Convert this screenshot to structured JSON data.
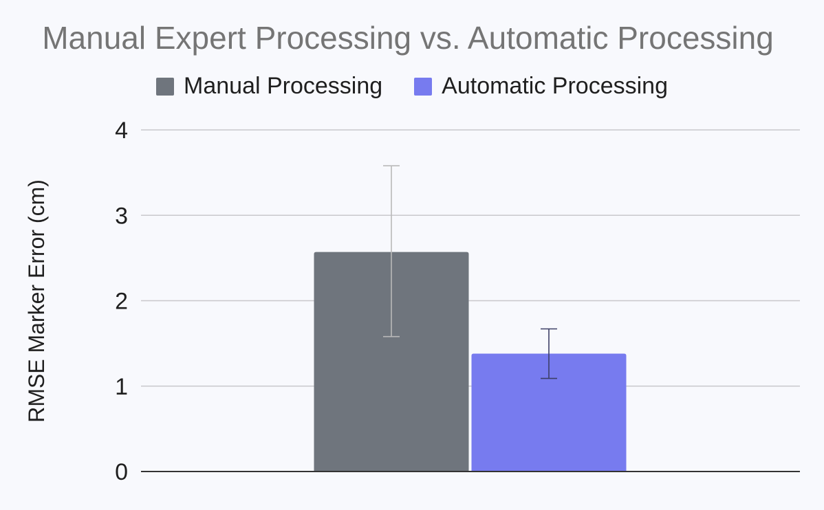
{
  "chart_data": {
    "type": "bar",
    "title": "Manual Expert Processing vs. Automatic Processing",
    "xlabel": "",
    "ylabel": "RMSE Marker Error (cm)",
    "ylim": [
      0,
      4
    ],
    "y_ticks": [
      "0",
      "1",
      "2",
      "3",
      "4"
    ],
    "categories": [
      ""
    ],
    "grid": true,
    "legend_position": "top",
    "series": [
      {
        "name": "Manual Processing",
        "color": "#6f757d",
        "error_color": "#b9b9b9",
        "values": [
          2.57
        ],
        "error_low": [
          1.58
        ],
        "error_high": [
          3.58
        ]
      },
      {
        "name": "Automatic Processing",
        "color": "#777bef",
        "error_color": "#3c3f66",
        "values": [
          1.38
        ],
        "error_low": [
          1.09
        ],
        "error_high": [
          1.67
        ]
      }
    ]
  }
}
